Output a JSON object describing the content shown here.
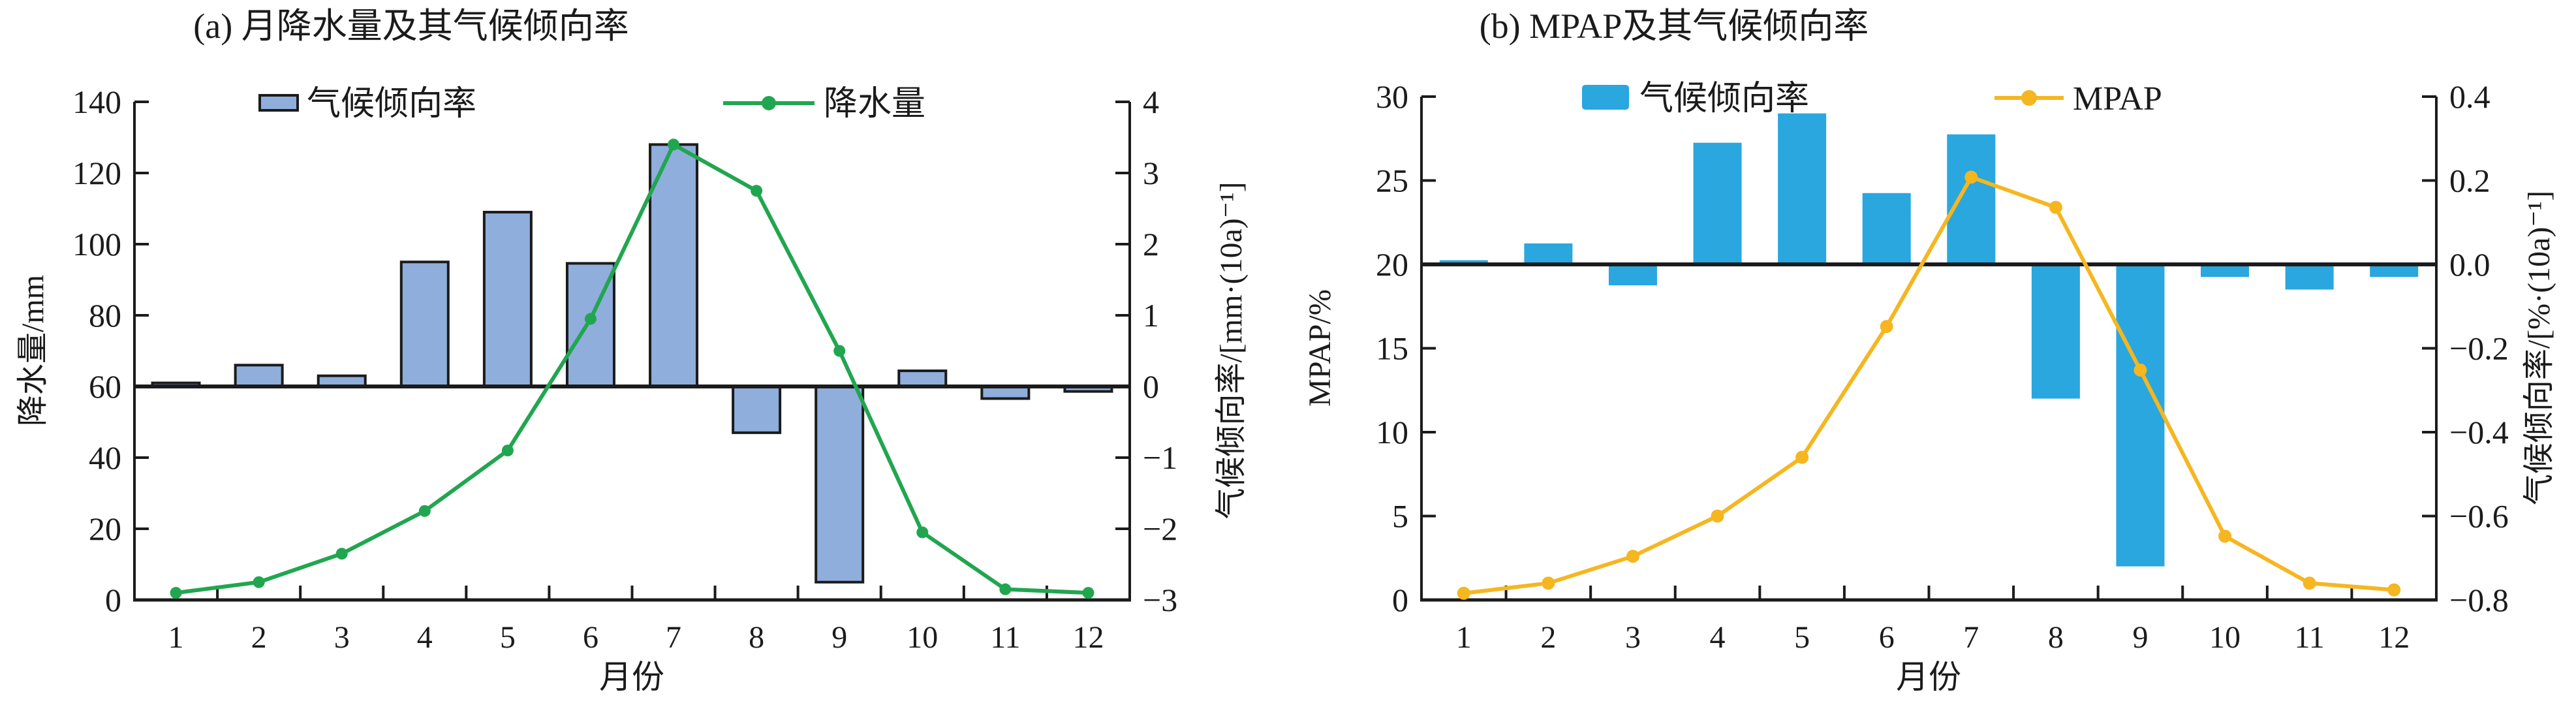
{
  "figure": {
    "background": "#ffffff",
    "ink_color": "#1b1b1b"
  },
  "chart_data": [
    {
      "type": "bar",
      "combo": "bar+line",
      "title": "(a) 月降水量及其气候倾向率",
      "xlabel": "月份",
      "categories": [
        "1",
        "2",
        "3",
        "4",
        "5",
        "6",
        "7",
        "8",
        "9",
        "10",
        "11",
        "12"
      ],
      "left_axis": {
        "label": "降水量/mm",
        "min": 0,
        "max": 140,
        "ticks": [
          0,
          20,
          40,
          60,
          80,
          100,
          120,
          140
        ],
        "tick_labels": [
          "0",
          "20",
          "40",
          "60",
          "80",
          "100",
          "120",
          "140"
        ]
      },
      "right_axis": {
        "label": "气候倾向率/[mm·(10a)⁻¹]",
        "min": -3,
        "max": 4,
        "ticks": [
          4,
          3,
          2,
          1,
          0,
          -1,
          -2,
          -3
        ],
        "tick_labels": [
          "4",
          "3",
          "2",
          "1",
          "0",
          "−1",
          "−2",
          "−3"
        ]
      },
      "legend": [
        "气候倾向率",
        "降水量"
      ],
      "series": [
        {
          "name": "气候倾向率",
          "type": "bar",
          "axis": "right",
          "color": "#8FAEDC",
          "border": "#1b1b1b",
          "values": [
            0.05,
            0.3,
            0.15,
            1.75,
            2.45,
            1.73,
            3.4,
            -0.65,
            -2.75,
            0.22,
            -0.17,
            -0.07
          ]
        },
        {
          "name": "降水量",
          "type": "line",
          "axis": "left",
          "color": "#21A650",
          "values": [
            2,
            5,
            13,
            25,
            42,
            79,
            128,
            115,
            70,
            19,
            3,
            2
          ]
        }
      ]
    },
    {
      "type": "bar",
      "combo": "bar+line",
      "title": "(b) MPAP及其气候倾向率",
      "xlabel": "月份",
      "categories": [
        "1",
        "2",
        "3",
        "4",
        "5",
        "6",
        "7",
        "8",
        "9",
        "10",
        "11",
        "12"
      ],
      "left_axis": {
        "label": "MPAP/%",
        "min": 0,
        "max": 30,
        "ticks": [
          0,
          5,
          10,
          15,
          20,
          25,
          30
        ],
        "tick_labels": [
          "0",
          "5",
          "10",
          "15",
          "20",
          "25",
          "30"
        ]
      },
      "right_axis": {
        "label": "气候倾向率/[%·(10a)⁻¹]",
        "min": -0.8,
        "max": 0.4,
        "ticks": [
          0.4,
          0.2,
          0.0,
          -0.2,
          -0.4,
          -0.6,
          -0.8
        ],
        "tick_labels": [
          "0.4",
          "0.2",
          "0.0",
          "−0.2",
          "−0.4",
          "−0.6",
          "−0.8"
        ]
      },
      "legend": [
        "气候倾向率",
        "MPAP"
      ],
      "series": [
        {
          "name": "气候倾向率",
          "type": "bar",
          "axis": "right",
          "color": "#29A7DE",
          "border": "none",
          "values": [
            0.01,
            0.05,
            -0.05,
            0.29,
            0.36,
            0.17,
            0.31,
            -0.32,
            -0.72,
            -0.03,
            -0.06,
            -0.03
          ]
        },
        {
          "name": "MPAP",
          "type": "line",
          "axis": "left",
          "color": "#F5B620",
          "values": [
            0.4,
            1.0,
            2.6,
            5.0,
            8.5,
            16.3,
            25.2,
            23.4,
            13.7,
            3.8,
            1.0,
            0.6
          ]
        }
      ]
    }
  ]
}
